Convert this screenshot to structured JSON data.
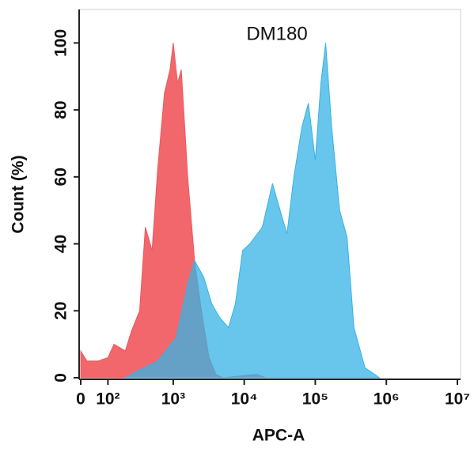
{
  "chart_data": {
    "type": "area",
    "title": "DM180",
    "xlabel": "APC-A",
    "ylabel": "Count  (%)",
    "xscale": "biexponential",
    "xlim": [
      0,
      10000000
    ],
    "xticks": [
      0,
      {
        "value": 100,
        "label": "10²"
      },
      {
        "value": 1000,
        "label": "10³"
      },
      {
        "value": 10000,
        "label": "10⁴"
      },
      {
        "value": 100000,
        "label": "10⁵"
      },
      {
        "value": 1000000,
        "label": "10⁶"
      },
      {
        "value": 10000000,
        "label": "10⁷"
      }
    ],
    "ylim": [
      0,
      110
    ],
    "yticks": [
      0,
      20,
      40,
      60,
      80,
      100
    ],
    "series": [
      {
        "color": "#f0575c",
        "x": [
          0,
          20,
          60,
          100,
          130,
          200,
          250,
          330,
          400,
          500,
          600,
          750,
          900,
          1000,
          1150,
          1300,
          1600,
          2000,
          2500,
          3200,
          4000,
          5000,
          15000,
          20000
        ],
        "values": [
          8,
          5,
          5,
          6,
          10,
          8,
          14,
          20,
          45,
          38,
          62,
          85,
          92,
          100,
          88,
          92,
          60,
          35,
          20,
          6,
          1,
          0,
          1,
          0
        ]
      },
      {
        "color": "#35b3e5",
        "x": [
          200,
          300,
          600,
          1100,
          1600,
          2000,
          2700,
          3500,
          4500,
          6000,
          7500,
          9500,
          12000,
          18000,
          25000,
          32000,
          40000,
          50000,
          65000,
          80000,
          100000,
          120000,
          140000,
          170000,
          220000,
          280000,
          350000,
          500000,
          800000
        ],
        "values": [
          0,
          2,
          5,
          12,
          28,
          35,
          30,
          22,
          18,
          15,
          22,
          38,
          40,
          45,
          58,
          50,
          43,
          60,
          75,
          82,
          65,
          88,
          100,
          75,
          50,
          42,
          15,
          3,
          0
        ]
      }
    ]
  }
}
